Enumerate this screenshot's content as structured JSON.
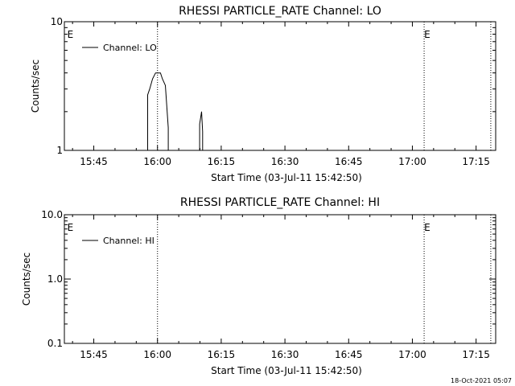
{
  "chart_data": [
    {
      "type": "line",
      "title": "RHESSI PARTICLE_RATE Channel: LO",
      "xlabel": "Start Time (03-Jul-11 15:42:50)",
      "ylabel": "Counts/sec",
      "yscale": "log",
      "ylim": [
        1,
        10
      ],
      "xlim_minutes": [
        -3.5,
        40.5
      ],
      "ytick_labels": [
        {
          "value": 10,
          "label": "10"
        },
        {
          "value": 1,
          "label": "1"
        }
      ],
      "xtick_labels": [
        {
          "value": -0.5,
          "label": "15:45"
        },
        {
          "value": 6.0,
          "label": "16:00"
        },
        {
          "value": 12.5,
          "label": "16:15"
        },
        {
          "value": 19.0,
          "label": "16:30"
        },
        {
          "value": 25.5,
          "label": "16:45"
        },
        {
          "value": 32.0,
          "label": "17:00"
        },
        {
          "value": 38.5,
          "label": "17:15"
        }
      ],
      "event_lines": [
        6.0,
        33.2,
        40.0
      ],
      "event_markers": [
        {
          "x": -3.2,
          "label": "E"
        },
        {
          "x": 33.2,
          "label": "E"
        }
      ],
      "legend": {
        "label": "Channel: LO",
        "position": "top-left"
      },
      "series": [
        {
          "name": "Channel: LO",
          "x": [
            5.0,
            5.0,
            5.2,
            5.5,
            5.8,
            6.3,
            6.5,
            6.8,
            7.1,
            7.1,
            10.3,
            10.3,
            10.5,
            10.6,
            10.6
          ],
          "y": [
            1.0,
            2.7,
            3.0,
            3.6,
            4.0,
            4.0,
            3.6,
            3.2,
            1.5,
            1.0,
            1.0,
            1.6,
            2.0,
            1.4,
            1.0
          ]
        }
      ]
    },
    {
      "type": "line",
      "title": "RHESSI PARTICLE_RATE Channel: HI",
      "xlabel": "Start Time (03-Jul-11 15:42:50)",
      "ylabel": "Counts/sec",
      "yscale": "log",
      "ylim": [
        0.1,
        10
      ],
      "xlim_minutes": [
        -3.5,
        40.5
      ],
      "ytick_labels": [
        {
          "value": 10,
          "label": "10.0"
        },
        {
          "value": 1,
          "label": "1.0"
        },
        {
          "value": 0.1,
          "label": "0.1"
        }
      ],
      "xtick_labels": [
        {
          "value": -0.5,
          "label": "15:45"
        },
        {
          "value": 6.0,
          "label": "16:00"
        },
        {
          "value": 12.5,
          "label": "16:15"
        },
        {
          "value": 19.0,
          "label": "16:30"
        },
        {
          "value": 25.5,
          "label": "16:45"
        },
        {
          "value": 32.0,
          "label": "17:00"
        },
        {
          "value": 38.5,
          "label": "17:15"
        }
      ],
      "event_lines": [
        6.0,
        33.2,
        40.0
      ],
      "event_markers": [
        {
          "x": -3.2,
          "label": "E"
        },
        {
          "x": 33.2,
          "label": "E"
        }
      ],
      "legend": {
        "label": "Channel: HI",
        "position": "top-left"
      },
      "series": [
        {
          "name": "Channel: HI",
          "x": [],
          "y": []
        }
      ]
    }
  ],
  "footer": {
    "timestamp": "18-Oct-2021 05:07"
  }
}
